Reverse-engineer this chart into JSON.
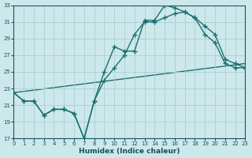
{
  "xlabel": "Humidex (Indice chaleur)",
  "background_color": "#cde8ea",
  "grid_color": "#a8cfd2",
  "line_color": "#1a7070",
  "xlim": [
    0,
    23
  ],
  "ylim": [
    17,
    33
  ],
  "xticks": [
    0,
    1,
    2,
    3,
    4,
    5,
    6,
    7,
    8,
    9,
    10,
    11,
    12,
    13,
    14,
    15,
    16,
    17,
    18,
    19,
    20,
    21,
    22,
    23
  ],
  "yticks": [
    17,
    19,
    21,
    23,
    25,
    27,
    29,
    31,
    33
  ],
  "curve1_x": [
    0,
    1,
    2,
    3,
    4,
    5,
    6,
    7,
    8,
    9,
    10,
    11,
    12,
    13,
    14,
    15,
    16,
    17,
    18,
    19,
    20,
    21,
    22,
    23
  ],
  "curve1_y": [
    22.5,
    21.5,
    21.5,
    19.8,
    20.5,
    20.5,
    20.0,
    17.0,
    21.5,
    25.0,
    28.0,
    27.5,
    27.5,
    31.2,
    31.2,
    33.0,
    32.7,
    32.2,
    31.5,
    30.5,
    29.5,
    26.5,
    26.0,
    25.5
  ],
  "curve2_x": [
    0,
    1,
    2,
    3,
    4,
    5,
    6,
    7,
    8,
    9,
    10,
    11,
    12,
    13,
    14,
    15,
    16,
    17,
    18,
    19,
    20,
    21,
    22,
    23
  ],
  "curve2_y": [
    22.5,
    21.5,
    21.5,
    19.8,
    20.5,
    20.5,
    20.0,
    17.0,
    21.5,
    24.0,
    25.5,
    27.0,
    29.5,
    31.0,
    31.0,
    31.5,
    32.0,
    32.2,
    31.5,
    29.5,
    28.5,
    26.0,
    25.5,
    25.5
  ],
  "line3_x": [
    0,
    23
  ],
  "line3_y": [
    22.5,
    26.0
  ],
  "markersize": 2.5,
  "linewidth": 1.0
}
